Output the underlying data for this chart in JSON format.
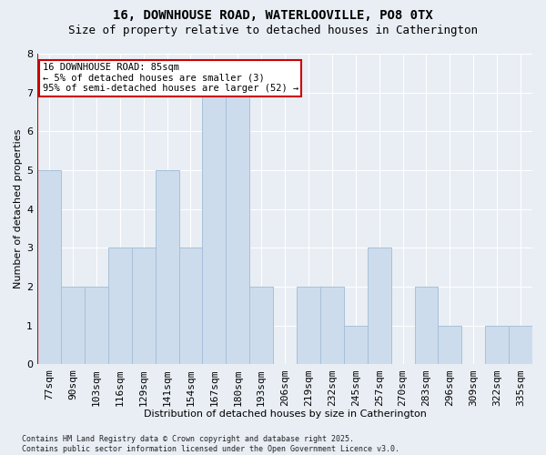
{
  "title_line1": "16, DOWNHOUSE ROAD, WATERLOOVILLE, PO8 0TX",
  "title_line2": "Size of property relative to detached houses in Catherington",
  "xlabel": "Distribution of detached houses by size in Catherington",
  "ylabel": "Number of detached properties",
  "categories": [
    "77sqm",
    "90sqm",
    "103sqm",
    "116sqm",
    "129sqm",
    "141sqm",
    "154sqm",
    "167sqm",
    "180sqm",
    "193sqm",
    "206sqm",
    "219sqm",
    "232sqm",
    "245sqm",
    "257sqm",
    "270sqm",
    "283sqm",
    "296sqm",
    "309sqm",
    "322sqm",
    "335sqm"
  ],
  "values": [
    5,
    2,
    2,
    3,
    3,
    5,
    3,
    7,
    7,
    2,
    0,
    2,
    2,
    1,
    3,
    0,
    2,
    1,
    0,
    1,
    1
  ],
  "bar_color": "#ccdcec",
  "bar_edgecolor": "#a8c0d8",
  "subject_line_color": "#cc0000",
  "annotation_title": "16 DOWNHOUSE ROAD: 85sqm",
  "annotation_line1": "← 5% of detached houses are smaller (3)",
  "annotation_line2": "95% of semi-detached houses are larger (52) →",
  "annotation_box_color": "#cc0000",
  "ylim": [
    0,
    8
  ],
  "yticks": [
    0,
    1,
    2,
    3,
    4,
    5,
    6,
    7,
    8
  ],
  "footer": "Contains HM Land Registry data © Crown copyright and database right 2025.\nContains public sector information licensed under the Open Government Licence v3.0.",
  "background_color": "#e8eef4",
  "plot_background": "#e8eef4",
  "grid_color": "#ffffff",
  "title_fontsize": 10,
  "subtitle_fontsize": 9,
  "axis_fontsize": 8,
  "tick_fontsize": 8,
  "footer_fontsize": 6
}
